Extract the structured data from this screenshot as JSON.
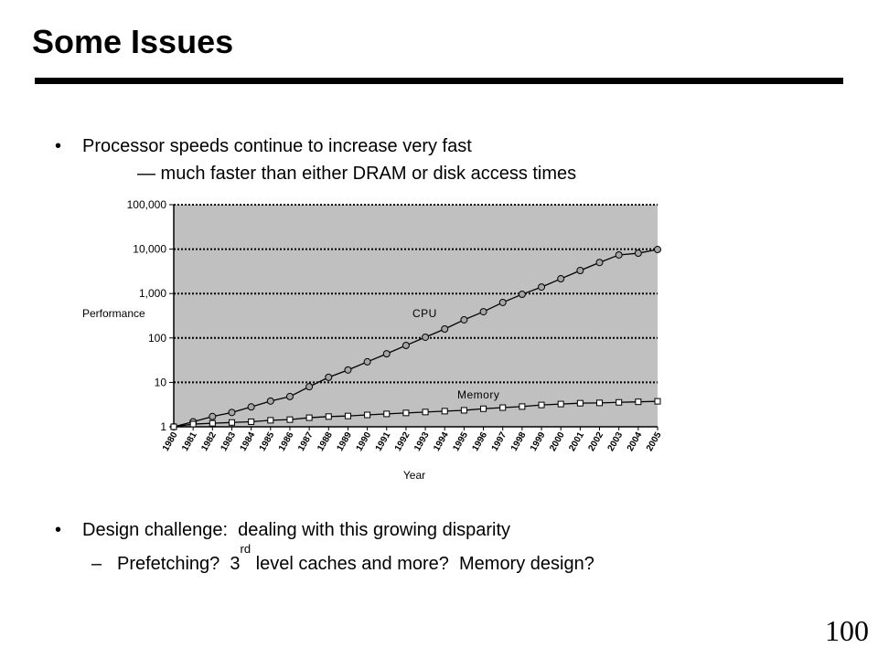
{
  "slide": {
    "title": "Some Issues",
    "page_number": "100"
  },
  "content": {
    "bullet_1": {
      "marker": "•",
      "text": "Processor speeds continue to increase very fast",
      "continuation": "— much faster than either DRAM or disk access times"
    },
    "bullet_2": {
      "marker": "•",
      "text": "Design challenge:  dealing with this growing disparity"
    },
    "sub_bullet": {
      "marker": "–",
      "text_before": "Prefetching?  3",
      "superscript": "rd",
      "text_after": " level caches and more?  Memory design?"
    }
  },
  "chart_data": {
    "type": "line",
    "title": "",
    "xlabel": "Year",
    "ylabel": "Performance",
    "yscale": "log",
    "ylim": [
      1,
      100000
    ],
    "y_ticks": [
      1,
      10,
      100,
      1000,
      10000,
      100000
    ],
    "y_tick_labels": [
      "1",
      "10",
      "100",
      "1,000",
      "10,000",
      "100,000"
    ],
    "grid": true,
    "plot_background": "#c0c0c0",
    "x": [
      1980,
      1981,
      1982,
      1983,
      1984,
      1985,
      1986,
      1987,
      1988,
      1989,
      1990,
      1991,
      1992,
      1993,
      1994,
      1995,
      1996,
      1997,
      1998,
      1999,
      2000,
      2001,
      2002,
      2003,
      2004,
      2005
    ],
    "series": [
      {
        "name": "CPU",
        "marker": "circle",
        "marker_fill": "#a6a6a6",
        "values": [
          1,
          1.3,
          1.7,
          2.1,
          2.8,
          3.8,
          4.8,
          8,
          13,
          19,
          29,
          44,
          68,
          104,
          159,
          256,
          390,
          630,
          960,
          1400,
          2150,
          3300,
          5000,
          7400,
          8100,
          9800
        ]
      },
      {
        "name": "Memory",
        "marker": "square",
        "marker_fill": "#ffffff",
        "values": [
          1,
          1.15,
          1.2,
          1.25,
          1.3,
          1.4,
          1.45,
          1.6,
          1.7,
          1.75,
          1.85,
          1.95,
          2.05,
          2.15,
          2.25,
          2.35,
          2.55,
          2.7,
          2.85,
          3.1,
          3.25,
          3.4,
          3.45,
          3.55,
          3.65,
          3.75
        ]
      }
    ]
  }
}
